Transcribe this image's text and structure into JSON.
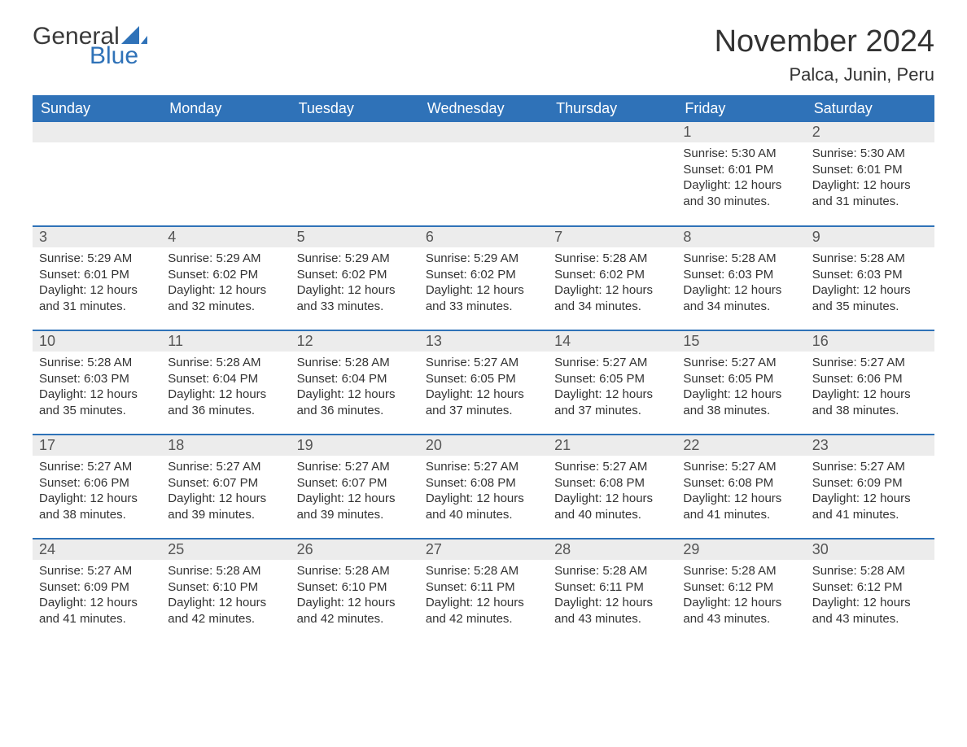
{
  "logo": {
    "text_general": "General",
    "text_blue": "Blue",
    "shape_color": "#2f72b8"
  },
  "header": {
    "month_title": "November 2024",
    "location": "Palca, Junin, Peru"
  },
  "calendar": {
    "type": "table",
    "header_bg": "#2f72b8",
    "header_text_color": "#ffffff",
    "row_separator_color": "#2f72b8",
    "daynum_bg": "#ececec",
    "background_color": "#ffffff",
    "columns": [
      "Sunday",
      "Monday",
      "Tuesday",
      "Wednesday",
      "Thursday",
      "Friday",
      "Saturday"
    ],
    "leading_blanks": 5,
    "days": [
      {
        "n": 1,
        "sunrise": "5:30 AM",
        "sunset": "6:01 PM",
        "daylight": "12 hours and 30 minutes."
      },
      {
        "n": 2,
        "sunrise": "5:30 AM",
        "sunset": "6:01 PM",
        "daylight": "12 hours and 31 minutes."
      },
      {
        "n": 3,
        "sunrise": "5:29 AM",
        "sunset": "6:01 PM",
        "daylight": "12 hours and 31 minutes."
      },
      {
        "n": 4,
        "sunrise": "5:29 AM",
        "sunset": "6:02 PM",
        "daylight": "12 hours and 32 minutes."
      },
      {
        "n": 5,
        "sunrise": "5:29 AM",
        "sunset": "6:02 PM",
        "daylight": "12 hours and 33 minutes."
      },
      {
        "n": 6,
        "sunrise": "5:29 AM",
        "sunset": "6:02 PM",
        "daylight": "12 hours and 33 minutes."
      },
      {
        "n": 7,
        "sunrise": "5:28 AM",
        "sunset": "6:02 PM",
        "daylight": "12 hours and 34 minutes."
      },
      {
        "n": 8,
        "sunrise": "5:28 AM",
        "sunset": "6:03 PM",
        "daylight": "12 hours and 34 minutes."
      },
      {
        "n": 9,
        "sunrise": "5:28 AM",
        "sunset": "6:03 PM",
        "daylight": "12 hours and 35 minutes."
      },
      {
        "n": 10,
        "sunrise": "5:28 AM",
        "sunset": "6:03 PM",
        "daylight": "12 hours and 35 minutes."
      },
      {
        "n": 11,
        "sunrise": "5:28 AM",
        "sunset": "6:04 PM",
        "daylight": "12 hours and 36 minutes."
      },
      {
        "n": 12,
        "sunrise": "5:28 AM",
        "sunset": "6:04 PM",
        "daylight": "12 hours and 36 minutes."
      },
      {
        "n": 13,
        "sunrise": "5:27 AM",
        "sunset": "6:05 PM",
        "daylight": "12 hours and 37 minutes."
      },
      {
        "n": 14,
        "sunrise": "5:27 AM",
        "sunset": "6:05 PM",
        "daylight": "12 hours and 37 minutes."
      },
      {
        "n": 15,
        "sunrise": "5:27 AM",
        "sunset": "6:05 PM",
        "daylight": "12 hours and 38 minutes."
      },
      {
        "n": 16,
        "sunrise": "5:27 AM",
        "sunset": "6:06 PM",
        "daylight": "12 hours and 38 minutes."
      },
      {
        "n": 17,
        "sunrise": "5:27 AM",
        "sunset": "6:06 PM",
        "daylight": "12 hours and 38 minutes."
      },
      {
        "n": 18,
        "sunrise": "5:27 AM",
        "sunset": "6:07 PM",
        "daylight": "12 hours and 39 minutes."
      },
      {
        "n": 19,
        "sunrise": "5:27 AM",
        "sunset": "6:07 PM",
        "daylight": "12 hours and 39 minutes."
      },
      {
        "n": 20,
        "sunrise": "5:27 AM",
        "sunset": "6:08 PM",
        "daylight": "12 hours and 40 minutes."
      },
      {
        "n": 21,
        "sunrise": "5:27 AM",
        "sunset": "6:08 PM",
        "daylight": "12 hours and 40 minutes."
      },
      {
        "n": 22,
        "sunrise": "5:27 AM",
        "sunset": "6:08 PM",
        "daylight": "12 hours and 41 minutes."
      },
      {
        "n": 23,
        "sunrise": "5:27 AM",
        "sunset": "6:09 PM",
        "daylight": "12 hours and 41 minutes."
      },
      {
        "n": 24,
        "sunrise": "5:27 AM",
        "sunset": "6:09 PM",
        "daylight": "12 hours and 41 minutes."
      },
      {
        "n": 25,
        "sunrise": "5:28 AM",
        "sunset": "6:10 PM",
        "daylight": "12 hours and 42 minutes."
      },
      {
        "n": 26,
        "sunrise": "5:28 AM",
        "sunset": "6:10 PM",
        "daylight": "12 hours and 42 minutes."
      },
      {
        "n": 27,
        "sunrise": "5:28 AM",
        "sunset": "6:11 PM",
        "daylight": "12 hours and 42 minutes."
      },
      {
        "n": 28,
        "sunrise": "5:28 AM",
        "sunset": "6:11 PM",
        "daylight": "12 hours and 43 minutes."
      },
      {
        "n": 29,
        "sunrise": "5:28 AM",
        "sunset": "6:12 PM",
        "daylight": "12 hours and 43 minutes."
      },
      {
        "n": 30,
        "sunrise": "5:28 AM",
        "sunset": "6:12 PM",
        "daylight": "12 hours and 43 minutes."
      }
    ],
    "labels": {
      "sunrise": "Sunrise:",
      "sunset": "Sunset:",
      "daylight": "Daylight:"
    }
  }
}
